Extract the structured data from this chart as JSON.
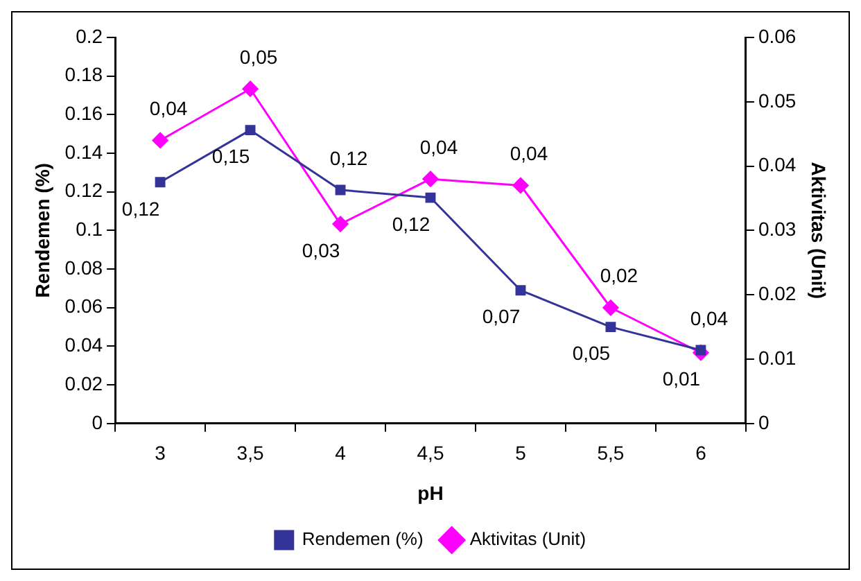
{
  "chart_data": {
    "type": "line",
    "xlabel": "pH",
    "ylabel": "Rendemen (%)",
    "y2label": "Aktivitas (Unit)",
    "categories": [
      "3",
      "3,5",
      "4",
      "4,5",
      "5",
      "5,5",
      "6"
    ],
    "series": [
      {
        "name": "Rendemen (%)",
        "color": "#333399",
        "marker": "square",
        "values": [
          0.125,
          0.152,
          0.121,
          0.117,
          0.069,
          0.05,
          0.038
        ],
        "value_labels": [
          "0,12",
          "0,15",
          "0,12",
          "0,12",
          "0,07",
          "0,05",
          "0,04"
        ]
      },
      {
        "name": "Aktivitas (Unit)",
        "color": "#ff00ff",
        "marker": "diamond",
        "axis": "y2",
        "values": [
          0.044,
          0.052,
          0.031,
          0.038,
          0.037,
          0.018,
          0.011
        ],
        "value_labels": [
          "0,04",
          "0,05",
          "0,03",
          "0,04",
          "0,04",
          "0,02",
          "0,01"
        ]
      }
    ],
    "ylim": [
      0,
      0.2
    ],
    "yticks": [
      0,
      0.02,
      0.04,
      0.06,
      0.08,
      0.1,
      0.12,
      0.14,
      0.16,
      0.18,
      0.2
    ],
    "y2lim": [
      0,
      0.06
    ],
    "y2ticks": [
      0,
      0.01,
      0.02,
      0.03,
      0.04,
      0.05,
      0.06
    ],
    "grid": false,
    "legend": "bottom"
  }
}
